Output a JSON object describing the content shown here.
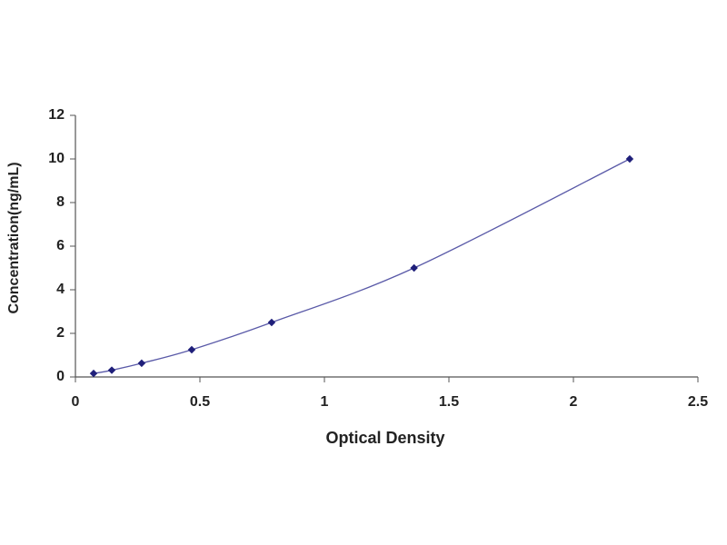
{
  "chart_data": {
    "type": "scatter",
    "x_label": "Optical Density",
    "y_label": "Concentration(ng/mL)",
    "series": [
      {
        "color": "#1f1f7a",
        "line_color": "#5a5aa8",
        "x": [
          0.073,
          0.146,
          0.266,
          0.467,
          0.788,
          1.36,
          2.226
        ],
        "values": [
          0.16,
          0.31,
          0.63,
          1.25,
          2.5,
          5,
          10
        ]
      }
    ],
    "xlim": [
      0,
      2.5
    ],
    "xticks": [
      0,
      0.5,
      1,
      1.5,
      2,
      2.5
    ],
    "ylim": [
      0,
      12
    ],
    "yticks": [
      0,
      2,
      4,
      6,
      8,
      10,
      12
    ],
    "grid": false
  }
}
